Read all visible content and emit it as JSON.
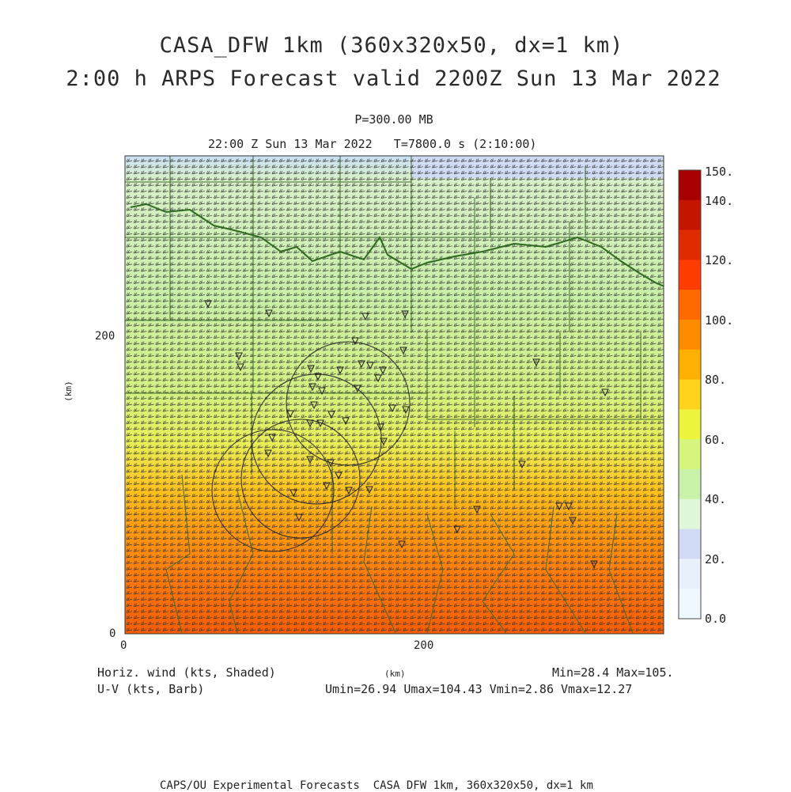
{
  "header": {
    "title_line1": "CASA_DFW 1km (360x320x50, dx=1 km)",
    "title_line2": "2:00 h ARPS Forecast valid 2200Z Sun 13 Mar 2022",
    "pressure_level": "P=300.00 MB",
    "valid_time": "22:00 Z Sun 13 Mar 2022   T=7800.0 s (2:10:00)"
  },
  "axes": {
    "x_ticks": [
      "0",
      "200"
    ],
    "y_ticks": [
      "0",
      "200"
    ],
    "x_label": "(km)",
    "y_label": "(km)"
  },
  "colorbar": {
    "labels": [
      "150.",
      "140.",
      "120.",
      "100.",
      "80.",
      "60.",
      "40.",
      "20.",
      "0.0"
    ],
    "colors": [
      "#a80000",
      "#c51400",
      "#e02a00",
      "#ff3c00",
      "#ff6a00",
      "#ff8c00",
      "#ffb000",
      "#ffd21c",
      "#ecf53c",
      "#d6f57c",
      "#c8f3a8",
      "#dff6d8",
      "#d2dbf6",
      "#e6f1fb",
      "#eef9ff"
    ]
  },
  "legend": {
    "shaded_label": "Horiz. wind (kts, Shaded)",
    "barb_label": "U-V (kts, Barb)",
    "minmax": "Min=28.4 Max=105.",
    "uv_stats": "Umin=26.94 Umax=104.43 Vmin=2.86 Vmax=12.27"
  },
  "footer": {
    "text": "CAPS/OU Experimental Forecasts  CASA DFW 1km, 360x320x50, dx=1 km"
  }
}
